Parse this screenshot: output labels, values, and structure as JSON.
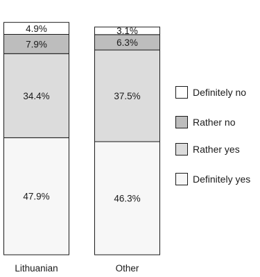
{
  "chart_data": {
    "type": "bar",
    "stacked": true,
    "categories": [
      "Lithuanian",
      "Other"
    ],
    "series": [
      {
        "name": "Definitely yes",
        "values": [
          47.9,
          46.3
        ],
        "labels": [
          "47.9%",
          "46.3%"
        ],
        "color": "#f7f7f7"
      },
      {
        "name": "Rather yes",
        "values": [
          34.4,
          37.5
        ],
        "labels": [
          "34.4%",
          "37.5%"
        ],
        "color": "#dcdcdc"
      },
      {
        "name": "Rather no",
        "values": [
          7.9,
          6.3
        ],
        "labels": [
          "7.9%",
          "6.3%"
        ],
        "color": "#bdbdbd"
      },
      {
        "name": "Definitely no",
        "values": [
          4.9,
          3.1
        ],
        "labels": [
          "4.9%",
          "3.1%"
        ],
        "color": "#ffffff"
      }
    ],
    "legend_order": [
      "Definitely no",
      "Rather no",
      "Rather yes",
      "Definitely yes"
    ],
    "legend_position": "right",
    "ylim": [
      0,
      100
    ]
  }
}
